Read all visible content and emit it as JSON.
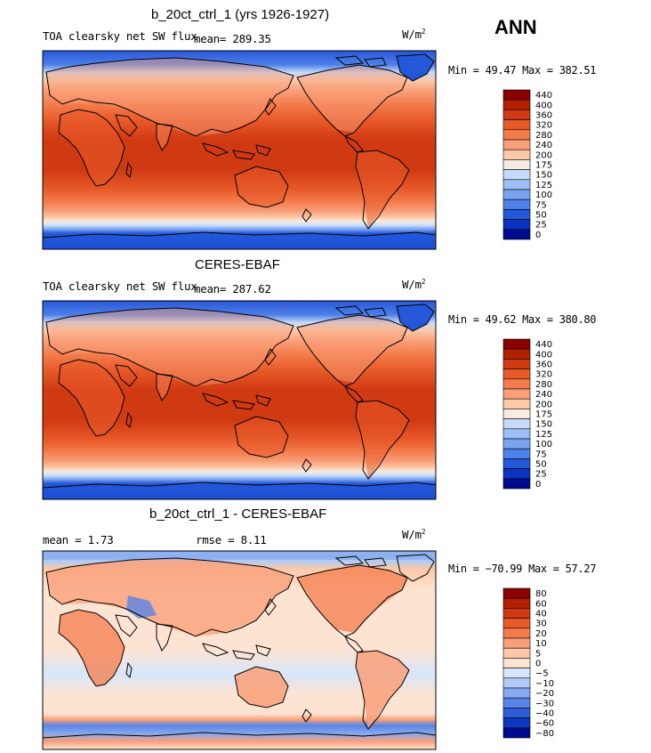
{
  "season": "ANN",
  "units": "W/m",
  "units_exp": "2",
  "chart_data": [
    {
      "type": "heatmap",
      "title": "b_20ct_ctrl_1 (yrs 1926-1927)",
      "subtitle": "TOA clearsky net SW flux",
      "mean_label": "mean=",
      "mean": "289.35",
      "min_label": "Min =",
      "min": "49.47",
      "max_label": "Max =",
      "max": "382.51",
      "colorbar_levels": [
        "440",
        "400",
        "360",
        "320",
        "280",
        "240",
        "200",
        "175",
        "150",
        "125",
        "100",
        "75",
        "50",
        "25",
        "0"
      ],
      "colorbar_colors": [
        "#8b0000",
        "#b22000",
        "#d03a12",
        "#e85a2a",
        "#f47c4c",
        "#f9a07a",
        "#fcc9a8",
        "#f7ece2",
        "#c6dbfa",
        "#9ebff5",
        "#7aa3ef",
        "#4d80e8",
        "#2458d9",
        "#0a33c0",
        "#000a8f"
      ]
    },
    {
      "type": "heatmap",
      "title": "CERES-EBAF",
      "subtitle": "TOA clearsky net SW flux",
      "mean_label": "mean=",
      "mean": "287.62",
      "min_label": "Min =",
      "min": "49.62",
      "max_label": "Max =",
      "max": "380.80",
      "colorbar_levels": [
        "440",
        "400",
        "360",
        "320",
        "280",
        "240",
        "200",
        "175",
        "150",
        "125",
        "100",
        "75",
        "50",
        "25",
        "0"
      ],
      "colorbar_colors": [
        "#8b0000",
        "#b22000",
        "#d03a12",
        "#e85a2a",
        "#f47c4c",
        "#f9a07a",
        "#fcc9a8",
        "#f7ece2",
        "#c6dbfa",
        "#9ebff5",
        "#7aa3ef",
        "#4d80e8",
        "#2458d9",
        "#0a33c0",
        "#000a8f"
      ]
    },
    {
      "type": "heatmap",
      "title": "b_20ct_ctrl_1 - CERES-EBAF",
      "mean_label": "mean =",
      "mean": "1.73",
      "rmse_label": "rmse =",
      "rmse": "8.11",
      "min_label": "Min =",
      "min": "−70.99",
      "max_label": "Max =",
      "max": "57.27",
      "colorbar_levels": [
        "80",
        "60",
        "40",
        "30",
        "20",
        "10",
        "5",
        "0",
        "−5",
        "−10",
        "−20",
        "−30",
        "−40",
        "−60",
        "−80"
      ],
      "colorbar_colors": [
        "#8b0000",
        "#b22000",
        "#d03a12",
        "#e85a2a",
        "#f47c4c",
        "#f9a07a",
        "#fcc9a8",
        "#fde4d2",
        "#d6e6fb",
        "#b0cbf6",
        "#86a9ef",
        "#5784e6",
        "#2f5dd8",
        "#0f36bf",
        "#000a8f"
      ]
    }
  ]
}
